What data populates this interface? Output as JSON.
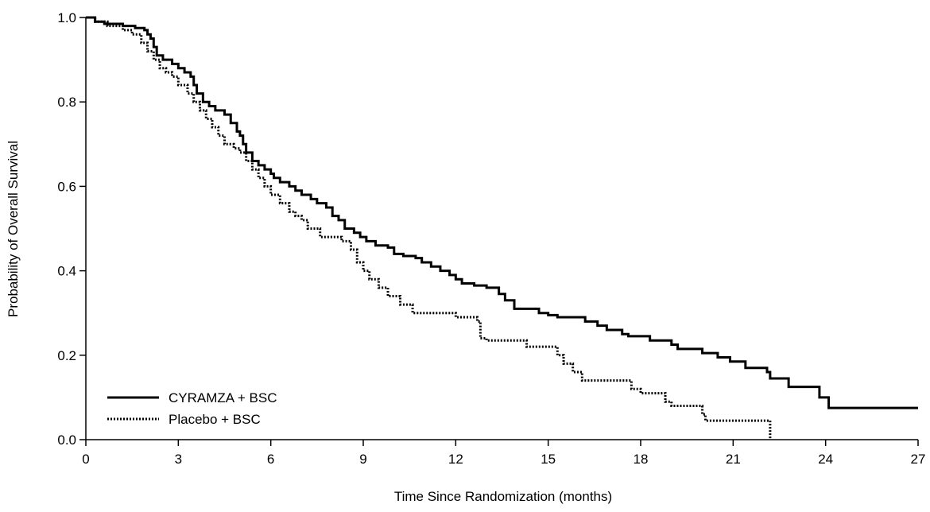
{
  "chart_data": {
    "type": "line",
    "step": true,
    "title": "",
    "xlabel": "Time Since Randomization (months)",
    "ylabel": "Probability of Overall Survival",
    "xlim": [
      0,
      27
    ],
    "ylim": [
      0.0,
      1.0
    ],
    "xticks": [
      0,
      3,
      6,
      9,
      12,
      15,
      18,
      21,
      24,
      27
    ],
    "yticks": [
      0.0,
      0.2,
      0.4,
      0.6,
      0.8,
      1.0
    ],
    "xtick_labels": [
      "0",
      "3",
      "6",
      "9",
      "12",
      "15",
      "18",
      "21",
      "24",
      "27"
    ],
    "ytick_labels": [
      "0.0",
      "0.2",
      "0.4",
      "0.6",
      "0.8",
      "1.0"
    ],
    "grid": false,
    "legend_position": "bottom-left",
    "series": [
      {
        "name": "CYRAMZA + BSC",
        "line_style": "solid",
        "color": "#000000",
        "points": [
          [
            0,
            1.0
          ],
          [
            0.3,
            0.99
          ],
          [
            0.6,
            0.985
          ],
          [
            1.2,
            0.98
          ],
          [
            1.6,
            0.975
          ],
          [
            1.9,
            0.97
          ],
          [
            2.0,
            0.96
          ],
          [
            2.1,
            0.95
          ],
          [
            2.2,
            0.93
          ],
          [
            2.3,
            0.91
          ],
          [
            2.5,
            0.9
          ],
          [
            2.8,
            0.89
          ],
          [
            3.0,
            0.88
          ],
          [
            3.2,
            0.87
          ],
          [
            3.4,
            0.86
          ],
          [
            3.5,
            0.84
          ],
          [
            3.6,
            0.82
          ],
          [
            3.8,
            0.8
          ],
          [
            4.0,
            0.79
          ],
          [
            4.2,
            0.78
          ],
          [
            4.5,
            0.77
          ],
          [
            4.7,
            0.75
          ],
          [
            4.9,
            0.73
          ],
          [
            5.0,
            0.72
          ],
          [
            5.1,
            0.7
          ],
          [
            5.2,
            0.68
          ],
          [
            5.4,
            0.66
          ],
          [
            5.6,
            0.65
          ],
          [
            5.8,
            0.64
          ],
          [
            6.0,
            0.63
          ],
          [
            6.1,
            0.62
          ],
          [
            6.3,
            0.61
          ],
          [
            6.6,
            0.6
          ],
          [
            6.8,
            0.59
          ],
          [
            7.0,
            0.58
          ],
          [
            7.3,
            0.57
          ],
          [
            7.5,
            0.56
          ],
          [
            7.8,
            0.55
          ],
          [
            8.0,
            0.53
          ],
          [
            8.2,
            0.52
          ],
          [
            8.4,
            0.5
          ],
          [
            8.7,
            0.49
          ],
          [
            8.9,
            0.48
          ],
          [
            9.1,
            0.47
          ],
          [
            9.4,
            0.46
          ],
          [
            9.8,
            0.455
          ],
          [
            10.0,
            0.44
          ],
          [
            10.3,
            0.435
          ],
          [
            10.7,
            0.43
          ],
          [
            10.9,
            0.42
          ],
          [
            11.2,
            0.41
          ],
          [
            11.5,
            0.4
          ],
          [
            11.8,
            0.39
          ],
          [
            12.0,
            0.38
          ],
          [
            12.2,
            0.37
          ],
          [
            12.6,
            0.365
          ],
          [
            13.0,
            0.36
          ],
          [
            13.4,
            0.345
          ],
          [
            13.6,
            0.33
          ],
          [
            13.9,
            0.31
          ],
          [
            14.7,
            0.3
          ],
          [
            15.0,
            0.295
          ],
          [
            15.3,
            0.29
          ],
          [
            16.2,
            0.28
          ],
          [
            16.6,
            0.27
          ],
          [
            16.9,
            0.26
          ],
          [
            17.4,
            0.25
          ],
          [
            17.6,
            0.245
          ],
          [
            18.3,
            0.235
          ],
          [
            19.0,
            0.225
          ],
          [
            19.2,
            0.215
          ],
          [
            20.0,
            0.205
          ],
          [
            20.5,
            0.195
          ],
          [
            20.9,
            0.185
          ],
          [
            21.4,
            0.17
          ],
          [
            22.1,
            0.16
          ],
          [
            22.2,
            0.145
          ],
          [
            22.8,
            0.125
          ],
          [
            23.8,
            0.1
          ],
          [
            24.1,
            0.075
          ],
          [
            27,
            0.075
          ]
        ]
      },
      {
        "name": "Placebo + BSC",
        "line_style": "dotted",
        "color": "#000000",
        "points": [
          [
            0,
            1.0
          ],
          [
            0.3,
            0.99
          ],
          [
            0.7,
            0.98
          ],
          [
            1.2,
            0.97
          ],
          [
            1.5,
            0.96
          ],
          [
            1.8,
            0.94
          ],
          [
            2.0,
            0.92
          ],
          [
            2.2,
            0.9
          ],
          [
            2.4,
            0.88
          ],
          [
            2.6,
            0.87
          ],
          [
            2.8,
            0.86
          ],
          [
            3.0,
            0.84
          ],
          [
            3.3,
            0.82
          ],
          [
            3.5,
            0.8
          ],
          [
            3.7,
            0.78
          ],
          [
            3.9,
            0.76
          ],
          [
            4.1,
            0.74
          ],
          [
            4.3,
            0.72
          ],
          [
            4.5,
            0.7
          ],
          [
            4.8,
            0.69
          ],
          [
            5.0,
            0.68
          ],
          [
            5.2,
            0.66
          ],
          [
            5.4,
            0.64
          ],
          [
            5.6,
            0.62
          ],
          [
            5.8,
            0.6
          ],
          [
            6.0,
            0.58
          ],
          [
            6.3,
            0.56
          ],
          [
            6.6,
            0.54
          ],
          [
            6.8,
            0.53
          ],
          [
            7.0,
            0.52
          ],
          [
            7.2,
            0.5
          ],
          [
            7.6,
            0.48
          ],
          [
            8.3,
            0.47
          ],
          [
            8.6,
            0.45
          ],
          [
            8.8,
            0.42
          ],
          [
            9.0,
            0.4
          ],
          [
            9.2,
            0.38
          ],
          [
            9.5,
            0.36
          ],
          [
            9.8,
            0.34
          ],
          [
            10.2,
            0.32
          ],
          [
            10.6,
            0.3
          ],
          [
            12.0,
            0.29
          ],
          [
            12.7,
            0.28
          ],
          [
            12.8,
            0.24
          ],
          [
            13.0,
            0.235
          ],
          [
            14.3,
            0.22
          ],
          [
            15.3,
            0.2
          ],
          [
            15.5,
            0.18
          ],
          [
            15.8,
            0.16
          ],
          [
            16.1,
            0.14
          ],
          [
            17.7,
            0.12
          ],
          [
            18.0,
            0.11
          ],
          [
            18.8,
            0.09
          ],
          [
            19.0,
            0.08
          ],
          [
            20.0,
            0.06
          ],
          [
            20.1,
            0.045
          ],
          [
            22.2,
            0.0
          ]
        ]
      }
    ]
  }
}
